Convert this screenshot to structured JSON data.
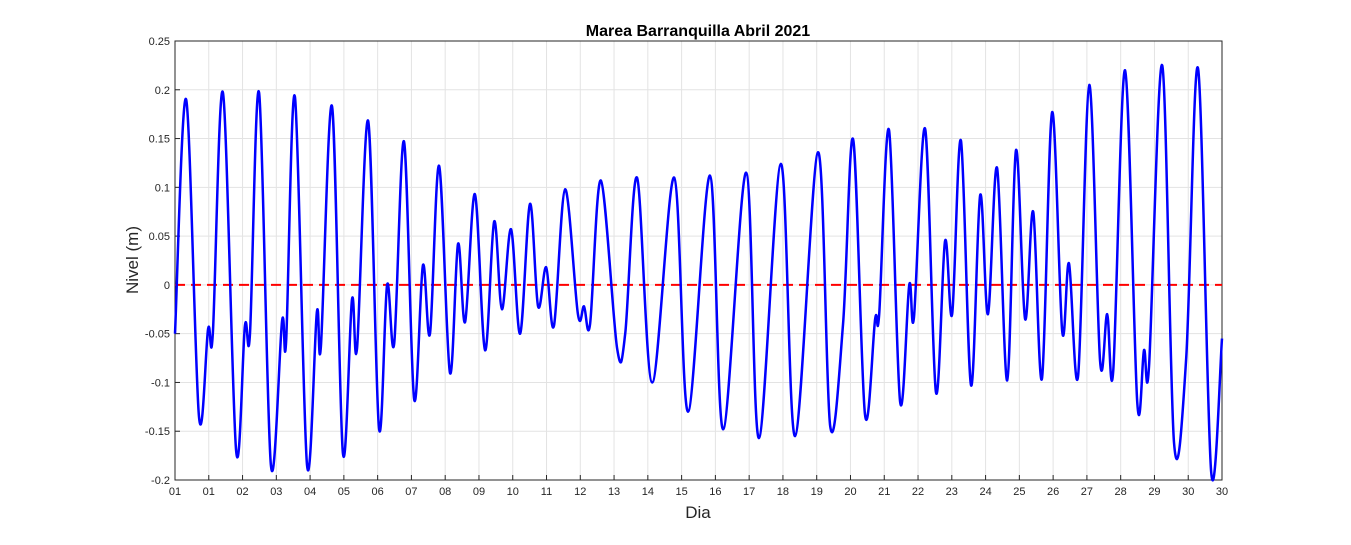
{
  "chart_data": {
    "type": "line",
    "title": "Marea Barranquilla Abril 2021",
    "xlabel": "Dia",
    "ylabel": "Nivel (m)",
    "grid": true,
    "xlim": [
      0,
      31
    ],
    "xticks": [
      {
        "value": 0,
        "label": "01"
      },
      {
        "value": 1,
        "label": "01"
      },
      {
        "value": 2,
        "label": "02"
      },
      {
        "value": 3,
        "label": "03"
      },
      {
        "value": 4,
        "label": "04"
      },
      {
        "value": 5,
        "label": "05"
      },
      {
        "value": 6,
        "label": "06"
      },
      {
        "value": 7,
        "label": "07"
      },
      {
        "value": 8,
        "label": "08"
      },
      {
        "value": 9,
        "label": "09"
      },
      {
        "value": 10,
        "label": "10"
      },
      {
        "value": 11,
        "label": "11"
      },
      {
        "value": 12,
        "label": "12"
      },
      {
        "value": 13,
        "label": "13"
      },
      {
        "value": 14,
        "label": "14"
      },
      {
        "value": 15,
        "label": "15"
      },
      {
        "value": 16,
        "label": "16"
      },
      {
        "value": 17,
        "label": "17"
      },
      {
        "value": 18,
        "label": "18"
      },
      {
        "value": 19,
        "label": "19"
      },
      {
        "value": 20,
        "label": "20"
      },
      {
        "value": 21,
        "label": "21"
      },
      {
        "value": 22,
        "label": "22"
      },
      {
        "value": 23,
        "label": "23"
      },
      {
        "value": 24,
        "label": "24"
      },
      {
        "value": 25,
        "label": "25"
      },
      {
        "value": 26,
        "label": "26"
      },
      {
        "value": 27,
        "label": "27"
      },
      {
        "value": 28,
        "label": "28"
      },
      {
        "value": 29,
        "label": "29"
      },
      {
        "value": 30,
        "label": "30"
      },
      {
        "value": 31,
        "label": "30"
      }
    ],
    "ylim": [
      -0.2,
      0.25
    ],
    "yticks": [
      -0.2,
      -0.15,
      -0.1,
      -0.05,
      0,
      0.05,
      0.1,
      0.15,
      0.2,
      0.25
    ],
    "hline": {
      "value": 0,
      "color": "#ff0000"
    },
    "series": [
      {
        "color": "#0000ff",
        "x": [
          0,
          0.33,
          0.71,
          0.98,
          1.12,
          1.42,
          1.81,
          2.07,
          2.22,
          2.49,
          2.84,
          3.17,
          3.29,
          3.55,
          3.91,
          4.2,
          4.32,
          4.65,
          4.97,
          5.24,
          5.39,
          5.72,
          6.04,
          6.28,
          6.49,
          6.78,
          7.08,
          7.34,
          7.55,
          7.82,
          8.14,
          8.38,
          8.59,
          8.88,
          9.18,
          9.45,
          9.68,
          9.95,
          10.22,
          10.51,
          10.75,
          10.99,
          11.22,
          11.55,
          11.93,
          12.11,
          12.29,
          12.61,
          13.09,
          13.33,
          13.68,
          14.13,
          14.78,
          15.19,
          15.84,
          16.23,
          16.91,
          17.29,
          17.94,
          18.36,
          19.04,
          19.4,
          19.78,
          20.08,
          20.43,
          20.73,
          20.85,
          21.14,
          21.47,
          21.74,
          21.88,
          22.21,
          22.53,
          22.8,
          23.01,
          23.27,
          23.57,
          23.84,
          24.07,
          24.34,
          24.64,
          24.9,
          25.17,
          25.41,
          25.67,
          25.97,
          26.27,
          26.47,
          26.74,
          27.07,
          27.39,
          27.6,
          27.78,
          28.13,
          28.49,
          28.69,
          28.84,
          29.23,
          29.58,
          29.94,
          30.29,
          30.68,
          31
        ],
        "values": [
          -0.05,
          0.19,
          -0.135,
          -0.045,
          -0.05,
          0.197,
          -0.17,
          -0.042,
          -0.05,
          0.197,
          -0.185,
          -0.037,
          -0.058,
          0.193,
          -0.185,
          -0.028,
          -0.063,
          0.183,
          -0.172,
          -0.015,
          -0.065,
          0.168,
          -0.147,
          0,
          -0.06,
          0.147,
          -0.117,
          0.02,
          -0.05,
          0.122,
          -0.09,
          0.042,
          -0.038,
          0.093,
          -0.067,
          0.065,
          -0.025,
          0.057,
          -0.05,
          0.083,
          -0.022,
          0.018,
          -0.042,
          0.098,
          -0.03,
          -0.022,
          -0.04,
          0.107,
          -0.065,
          -0.05,
          0.11,
          -0.1,
          0.11,
          -0.13,
          0.112,
          -0.148,
          0.115,
          -0.157,
          0.124,
          -0.155,
          0.136,
          -0.145,
          -0.04,
          0.149,
          -0.133,
          -0.035,
          -0.03,
          0.159,
          -0.12,
          0,
          -0.033,
          0.16,
          -0.11,
          0.045,
          -0.03,
          0.148,
          -0.103,
          0.092,
          -0.03,
          0.12,
          -0.098,
          0.138,
          -0.035,
          0.075,
          -0.096,
          0.177,
          -0.048,
          0.022,
          -0.093,
          0.205,
          -0.078,
          -0.03,
          -0.088,
          0.22,
          -0.12,
          -0.067,
          -0.083,
          0.225,
          -0.162,
          -0.075,
          0.222,
          -0.192,
          -0.055
        ]
      }
    ]
  }
}
